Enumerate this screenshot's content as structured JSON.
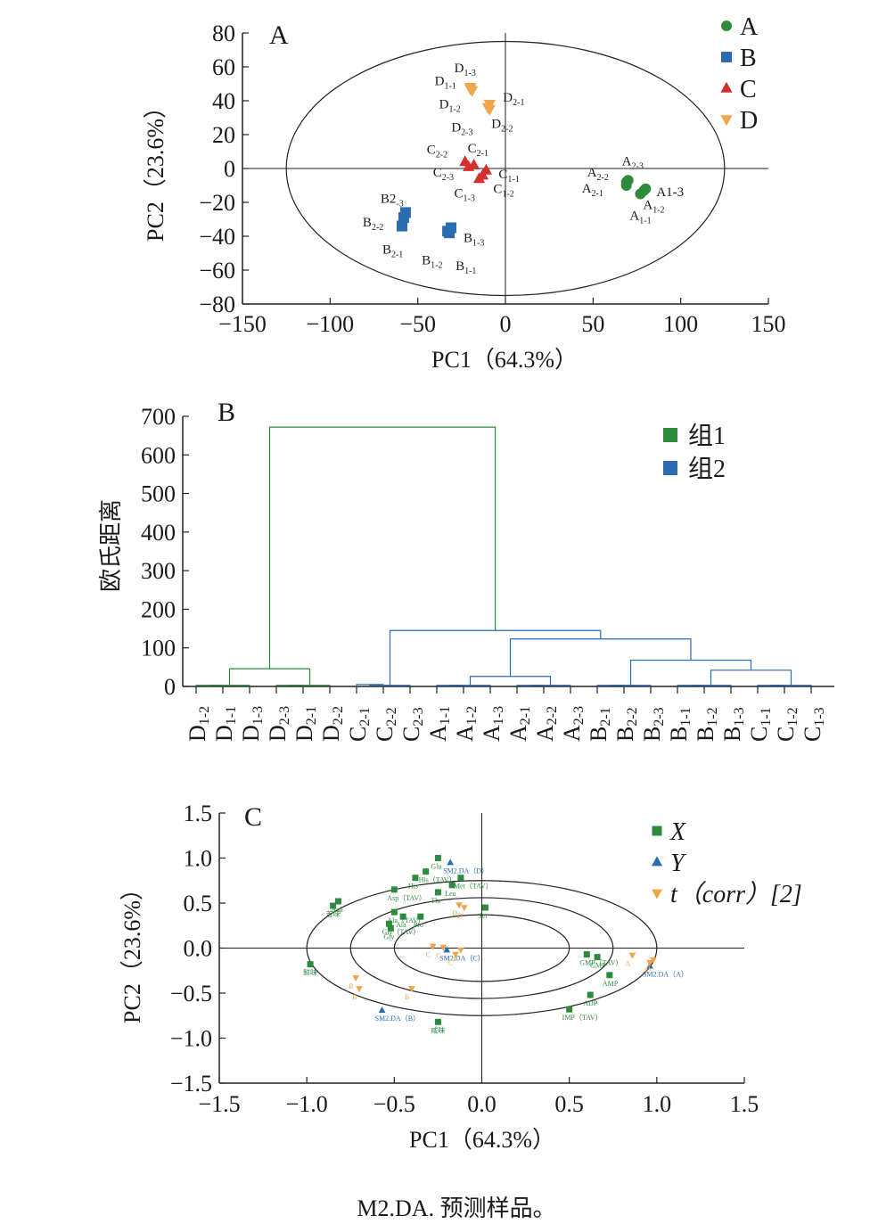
{
  "caption": "M2.DA. 预测样品。",
  "chart_data": [
    {
      "type": "scatter",
      "panel": "A",
      "xlabel": "PC1（64.3%）",
      "ylabel": "PC2（23.6%）",
      "xlim": [
        -150,
        150
      ],
      "ylim": [
        -80,
        80
      ],
      "xticks": [
        -150,
        -100,
        -50,
        0,
        50,
        100,
        150
      ],
      "yticks": [
        80,
        60,
        40,
        20,
        0,
        -20,
        -40,
        -60,
        -80
      ],
      "xtick_labels": [
        "−150",
        "−100",
        "−50",
        "0",
        "50",
        "100",
        "150"
      ],
      "ytick_labels": [
        "80",
        "60",
        "40",
        "20",
        "0",
        "−20",
        "−40",
        "−60",
        "−80"
      ],
      "ellipse": {
        "rx": 125,
        "ry": 75
      },
      "legend_position": "top-right",
      "series": [
        {
          "name": "A",
          "color": "#2e8b3e",
          "marker": "circle",
          "points": [
            {
              "label": "A",
              "sub": "1-1",
              "x": 77,
              "y": -15
            },
            {
              "label": "A",
              "sub": "1-2",
              "x": 79,
              "y": -13
            },
            {
              "label": "A1-3",
              "sub": "",
              "x": 80,
              "y": -12
            },
            {
              "label": "A",
              "sub": "2-1",
              "x": 69,
              "y": -10
            },
            {
              "label": "A",
              "sub": "2-2",
              "x": 69,
              "y": -8
            },
            {
              "label": "A",
              "sub": "2-3",
              "x": 70,
              "y": -7
            }
          ]
        },
        {
          "name": "B",
          "color": "#2b6cb0",
          "marker": "square",
          "points": [
            {
              "label": "B",
              "sub": "1-1",
              "x": -32,
              "y": -38
            },
            {
              "label": "B",
              "sub": "1-2",
              "x": -33,
              "y": -37
            },
            {
              "label": "B",
              "sub": "1-3",
              "x": -31,
              "y": -35
            },
            {
              "label": "B",
              "sub": "2-1",
              "x": -59,
              "y": -34
            },
            {
              "label": "B",
              "sub": "2-2",
              "x": -58,
              "y": -29
            },
            {
              "label": "B2",
              "sub": "-3",
              "x": -57,
              "y": -26
            }
          ]
        },
        {
          "name": "C",
          "color": "#d62d2d",
          "marker": "triangle-up",
          "points": [
            {
              "label": "C",
              "sub": "1-1",
              "x": -11,
              "y": -1
            },
            {
              "label": "C",
              "sub": "1-2",
              "x": -13,
              "y": -4
            },
            {
              "label": "C",
              "sub": "1-3",
              "x": -15,
              "y": -6
            },
            {
              "label": "C",
              "sub": "2-1",
              "x": -18,
              "y": 2
            },
            {
              "label": "C",
              "sub": "2-2",
              "x": -23,
              "y": 4
            },
            {
              "label": "C",
              "sub": "2-3",
              "x": -21,
              "y": 1
            }
          ]
        },
        {
          "name": "D",
          "color": "#f0a64a",
          "marker": "triangle-down",
          "points": [
            {
              "label": "D",
              "sub": "1-1",
              "x": -20,
              "y": 47
            },
            {
              "label": "D",
              "sub": "1-2",
              "x": -19,
              "y": 46
            },
            {
              "label": "D",
              "sub": "1-3",
              "x": -20,
              "y": 48
            },
            {
              "label": "D",
              "sub": "2-1",
              "x": -9,
              "y": 38
            },
            {
              "label": "D",
              "sub": "2-2",
              "x": -9,
              "y": 35
            },
            {
              "label": "D",
              "sub": "2-3",
              "x": -10,
              "y": 36
            }
          ]
        }
      ]
    },
    {
      "type": "dendrogram",
      "panel": "B",
      "ylabel": "欧氏距离",
      "ylim": [
        0,
        700
      ],
      "yticks": [
        700,
        600,
        500,
        400,
        300,
        200,
        100,
        0
      ],
      "leaves": [
        {
          "label": "D",
          "sub": "1-2"
        },
        {
          "label": "D",
          "sub": "1-1"
        },
        {
          "label": "D",
          "sub": "1-3"
        },
        {
          "label": "D",
          "sub": "2-3"
        },
        {
          "label": "D",
          "sub": "2-1"
        },
        {
          "label": "D",
          "sub": "2-2"
        },
        {
          "label": "C",
          "sub": "2-1"
        },
        {
          "label": "C",
          "sub": "2-2"
        },
        {
          "label": "C",
          "sub": "2-3"
        },
        {
          "label": "A",
          "sub": "1-1"
        },
        {
          "label": "A",
          "sub": "1-2"
        },
        {
          "label": "A",
          "sub": "1-3"
        },
        {
          "label": "A",
          "sub": "2-1"
        },
        {
          "label": "A",
          "sub": "2-2"
        },
        {
          "label": "A",
          "sub": "2-3"
        },
        {
          "label": "B",
          "sub": "2-1"
        },
        {
          "label": "B",
          "sub": "2-2"
        },
        {
          "label": "B",
          "sub": "2-3"
        },
        {
          "label": "B",
          "sub": "1-1"
        },
        {
          "label": "B",
          "sub": "1-2"
        },
        {
          "label": "B",
          "sub": "1-3"
        },
        {
          "label": "C",
          "sub": "1-1"
        },
        {
          "label": "C",
          "sub": "1-2"
        },
        {
          "label": "C",
          "sub": "1-3"
        }
      ],
      "legend": [
        {
          "name": "组1",
          "color": "#2e8b3e"
        },
        {
          "name": "组2",
          "color": "#2b6cb0"
        }
      ],
      "merges": [
        {
          "a": 0,
          "b": 1,
          "h": 3,
          "g": 1
        },
        {
          "a": 24,
          "b": 2,
          "h": 3,
          "g": 1
        },
        {
          "a": 3,
          "b": 4,
          "h": 3,
          "g": 1
        },
        {
          "a": 26,
          "b": 5,
          "h": 3,
          "g": 1
        },
        {
          "a": 25,
          "b": 27,
          "h": 46,
          "g": 1
        },
        {
          "a": 6,
          "b": 7,
          "h": 5,
          "g": 2
        },
        {
          "a": 29,
          "b": 8,
          "h": 3,
          "g": 2
        },
        {
          "a": 9,
          "b": 10,
          "h": 3,
          "g": 2
        },
        {
          "a": 31,
          "b": 11,
          "h": 3,
          "g": 2
        },
        {
          "a": 12,
          "b": 13,
          "h": 3,
          "g": 2
        },
        {
          "a": 33,
          "b": 14,
          "h": 3,
          "g": 2
        },
        {
          "a": 32,
          "b": 34,
          "h": 26,
          "g": 2
        },
        {
          "a": 15,
          "b": 16,
          "h": 3,
          "g": 2
        },
        {
          "a": 36,
          "b": 17,
          "h": 3,
          "g": 2
        },
        {
          "a": 18,
          "b": 19,
          "h": 3,
          "g": 2
        },
        {
          "a": 38,
          "b": 20,
          "h": 3,
          "g": 2
        },
        {
          "a": 21,
          "b": 22,
          "h": 3,
          "g": 2
        },
        {
          "a": 40,
          "b": 23,
          "h": 3,
          "g": 2
        },
        {
          "a": 39,
          "b": 41,
          "h": 42,
          "g": 2
        },
        {
          "a": 37,
          "b": 42,
          "h": 68,
          "g": 2
        },
        {
          "a": 35,
          "b": 43,
          "h": 123,
          "g": 2
        },
        {
          "a": 30,
          "b": 44,
          "h": 145,
          "g": 2
        },
        {
          "a": 28,
          "b": 45,
          "h": 672,
          "g": 1
        }
      ]
    },
    {
      "type": "scatter",
      "panel": "C",
      "xlabel": "PC1（64.3%）",
      "ylabel": "PC2（23.6%）",
      "xlim": [
        -1.5,
        1.5
      ],
      "ylim": [
        -1.5,
        1.5
      ],
      "xticks": [
        -1.5,
        -1.0,
        -0.5,
        0.0,
        0.5,
        1.0,
        1.5
      ],
      "yticks": [
        1.5,
        1.0,
        0.5,
        0.0,
        -0.5,
        -1.0,
        -1.5
      ],
      "xtick_labels": [
        "−1.5",
        "−1.0",
        "−0.5",
        "0.0",
        "0.5",
        "1.0",
        "1.5"
      ],
      "ytick_labels": [
        "1.5",
        "1.0",
        "0.5",
        "0.0",
        "−0.5",
        "−1.0",
        "−1.5"
      ],
      "ellipses": [
        {
          "rx": 1.0,
          "ry": 0.75
        },
        {
          "rx": 0.75,
          "ry": 0.56
        },
        {
          "rx": 0.5,
          "ry": 0.37
        }
      ],
      "legend_position": "top-right",
      "legend": [
        {
          "name": "X",
          "italic": true,
          "color": "#2e8b3e",
          "marker": "square"
        },
        {
          "name": "Y",
          "italic": true,
          "color": "#2b6cb0",
          "marker": "triangle-up"
        },
        {
          "name": "t（corr）[2]",
          "italic": true,
          "color": "#f0a64a",
          "marker": "triangle-down"
        }
      ],
      "series": [
        {
          "name": "X",
          "color": "#2e8b3e",
          "marker": "square",
          "points": [
            {
              "label": "Glu",
              "x": -0.25,
              "y": 1.0
            },
            {
              "label": "His（TAV）",
              "x": -0.32,
              "y": 0.85
            },
            {
              "label": "His",
              "x": -0.38,
              "y": 0.78
            },
            {
              "label": "Met（TAV）",
              "x": -0.12,
              "y": 0.78
            },
            {
              "label": "Leu",
              "x": -0.17,
              "y": 0.7
            },
            {
              "label": "Asp（TAV）",
              "x": -0.5,
              "y": 0.65
            },
            {
              "label": "Asp",
              "x": -0.82,
              "y": 0.52
            },
            {
              "label": "苦味",
              "x": -0.85,
              "y": 0.47
            },
            {
              "label": "Thr",
              "x": -0.25,
              "y": 0.62
            },
            {
              "label": "Ala（TAV）",
              "x": -0.5,
              "y": 0.4
            },
            {
              "label": "Ala",
              "x": -0.45,
              "y": 0.35
            },
            {
              "label": "Pro",
              "x": -0.35,
              "y": 0.35
            },
            {
              "label": "Gly（TAV）",
              "x": -0.53,
              "y": 0.27
            },
            {
              "label": "Gly",
              "x": -0.52,
              "y": 0.22
            },
            {
              "label": "Ser",
              "x": 0.02,
              "y": 0.45
            },
            {
              "label": "鲜味",
              "x": -0.98,
              "y": -0.18
            },
            {
              "label": "咸味",
              "x": -0.25,
              "y": -0.82
            },
            {
              "label": "GMP",
              "x": 0.66,
              "y": -0.1
            },
            {
              "label": "GMP（TAV）",
              "x": 0.6,
              "y": -0.07
            },
            {
              "label": "AMP",
              "x": 0.73,
              "y": -0.3
            },
            {
              "label": "ADP",
              "x": 0.62,
              "y": -0.52
            },
            {
              "label": "IMP（TAV）",
              "x": 0.5,
              "y": -0.68
            }
          ]
        },
        {
          "name": "Y",
          "color": "#2b6cb0",
          "marker": "triangle-up",
          "points": [
            {
              "label": "SM2.DA（D）",
              "x": -0.18,
              "y": 0.95
            },
            {
              "label": "SM2.DA（C）",
              "x": -0.2,
              "y": -0.02
            },
            {
              "label": "SM2.DA（A）",
              "x": 0.96,
              "y": -0.2
            },
            {
              "label": "SM2.DA（B）",
              "x": -0.57,
              "y": -0.69
            }
          ]
        },
        {
          "name": "t（corr）[2]",
          "color": "#f0a64a",
          "marker": "triangle-down",
          "points": [
            {
              "label": "D",
              "x": -0.1,
              "y": 0.45
            },
            {
              "label": "D",
              "x": -0.13,
              "y": 0.48
            },
            {
              "label": "C",
              "x": -0.28,
              "y": 0.02
            },
            {
              "label": "C",
              "x": -0.22,
              "y": 0.01
            },
            {
              "label": "C",
              "x": -0.15,
              "y": -0.07
            },
            {
              "label": "C",
              "x": -0.12,
              "y": -0.02
            },
            {
              "label": "A",
              "x": 0.86,
              "y": -0.08
            },
            {
              "label": "A",
              "x": 0.98,
              "y": -0.13
            },
            {
              "label": "A",
              "x": 0.96,
              "y": -0.16
            },
            {
              "label": "B",
              "x": -0.72,
              "y": -0.33
            },
            {
              "label": "B",
              "x": -0.7,
              "y": -0.45
            },
            {
              "label": "B",
              "x": -0.4,
              "y": -0.45
            }
          ]
        }
      ]
    }
  ]
}
